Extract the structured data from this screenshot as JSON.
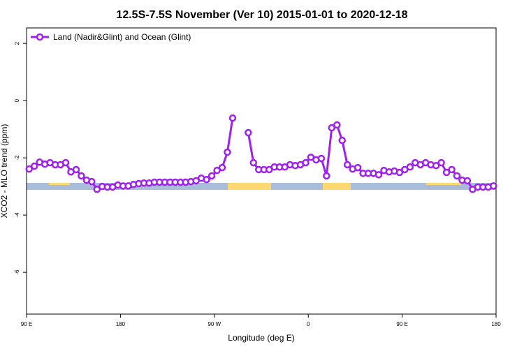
{
  "chart_data": {
    "type": "line",
    "title": "12.5S-7.5S November (Ver 10)   2015-01-01 to 2020-12-18",
    "xlabel": "Longitude (deg E)",
    "ylabel": "XCO2 - MLO trend (ppm)",
    "xlim": [
      90,
      540
    ],
    "ylim": [
      -7.46,
      2.54
    ],
    "xticks": [
      {
        "value": 90,
        "label": "90 E"
      },
      180,
      {
        "value": 270,
        "label": "90 W"
      },
      {
        "value": 360,
        "label": "0"
      },
      {
        "value": 450,
        "label": "90 E"
      },
      {
        "value": 540,
        "label": "180"
      }
    ],
    "yticks": [
      2,
      0,
      -2,
      -4,
      -6
    ],
    "legend": "top-left",
    "x": [
      92.5,
      97.5,
      102.5,
      107.5,
      112.5,
      117.5,
      122.5,
      127.5,
      132.5,
      137.5,
      142.5,
      147.5,
      152.5,
      157.5,
      162.5,
      167.5,
      172.5,
      177.5,
      182.5,
      187.5,
      192.5,
      197.5,
      202.5,
      207.5,
      212.5,
      217.5,
      222.5,
      227.5,
      232.5,
      237.5,
      242.5,
      247.5,
      252.5,
      257.5,
      262.5,
      267.5,
      272.5,
      277.5,
      282.5,
      287.5,
      292.5,
      297.5,
      302.5,
      307.5,
      312.5,
      317.5,
      322.5,
      327.5,
      332.5,
      337.5,
      342.5,
      347.5,
      352.5,
      357.5,
      362.5,
      367.5,
      372.5,
      377.5,
      382.5,
      387.5,
      392.5,
      397.5,
      402.5,
      407.5,
      412.5,
      417.5,
      422.5,
      427.5,
      432.5,
      437.5,
      442.5,
      447.5,
      452.5,
      457.5,
      462.5,
      467.5,
      472.5,
      477.5,
      482.5,
      487.5,
      492.5,
      497.5,
      502.5,
      507.5,
      512.5,
      517.5,
      522.5,
      527.5,
      532.5,
      537.5
    ],
    "series": [
      {
        "name": "Land (Nadir&Glint) and Ocean (Glint)",
        "color": "#a020f0",
        "values": [
          -2.39,
          -2.29,
          -2.15,
          -2.22,
          -2.17,
          -2.24,
          -2.24,
          -2.17,
          -2.49,
          -2.41,
          -2.63,
          -2.78,
          -2.83,
          -3.1,
          -3.0,
          -3.02,
          -3.02,
          -2.95,
          -2.98,
          -2.98,
          -2.93,
          -2.9,
          -2.88,
          -2.88,
          -2.85,
          -2.85,
          -2.85,
          -2.85,
          -2.85,
          -2.85,
          -2.85,
          -2.83,
          -2.8,
          -2.71,
          -2.76,
          -2.63,
          -2.44,
          -2.34,
          -1.8,
          -0.61,
          null,
          null,
          -1.12,
          -2.17,
          -2.41,
          -2.41,
          -2.41,
          -2.32,
          -2.32,
          -2.32,
          -2.24,
          -2.27,
          -2.24,
          -2.17,
          -1.98,
          -2.07,
          -2.02,
          -2.63,
          -0.95,
          -0.85,
          -1.39,
          -2.24,
          -2.39,
          -2.34,
          -2.54,
          -2.54,
          -2.54,
          -2.59,
          -2.44,
          -2.49,
          -2.46,
          -2.51,
          -2.41,
          -2.32,
          -2.17,
          -2.24,
          -2.17,
          -2.24,
          -2.27,
          -2.17,
          -2.51,
          -2.41,
          -2.63,
          -2.78,
          -2.8,
          -3.1,
          -3.02,
          -3.02,
          -3.02,
          -2.98
        ]
      }
    ]
  }
}
